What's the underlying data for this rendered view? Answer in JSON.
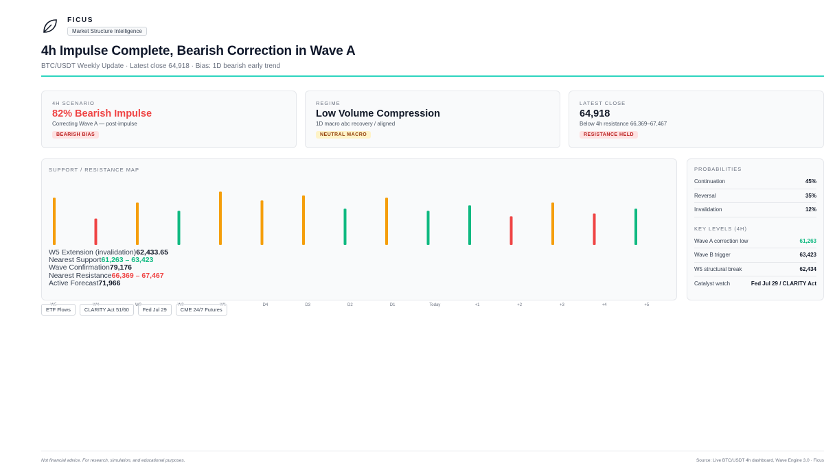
{
  "brand": {
    "name": "FICUS",
    "tagline": "Market Structure Intelligence",
    "logo_icon": "leaf-icon"
  },
  "header": {
    "title": "4h Impulse Complete, Bearish Correction in Wave A",
    "subtitle": "BTC/USDT Weekly Update · Latest close 64,918 · Bias: 1D bearish early trend"
  },
  "cards": [
    {
      "label": "4H SCENARIO",
      "value": "82% Bearish Impulse",
      "sub": "Correcting Wave A — post-impulse",
      "badge": "BEARISH BIAS",
      "value_color": "#ef4444"
    },
    {
      "label": "REGIME",
      "value": "Low Volume Compression",
      "sub": "1D macro abc recovery / aligned",
      "badge": "NEUTRAL MACRO",
      "value_color": "#111827"
    },
    {
      "label": "LATEST CLOSE",
      "value": "64,918",
      "sub": "Below 4h resistance 66,369–67,467",
      "badge": "RESISTANCE HELD",
      "value_color": "#111827"
    }
  ],
  "map": {
    "label": "SUPPORT / RESISTANCE MAP",
    "levels": [
      {
        "label": "W5 Extension (invalidation)",
        "value": "62,433.65"
      },
      {
        "label": "Nearest Support",
        "value": "61,263 – 63,423"
      },
      {
        "label": "Wave Confirmation",
        "value": "79,176"
      },
      {
        "label": "Nearest Resistance",
        "value": "66,369 – 67,467"
      },
      {
        "label": "Active Forecast",
        "value": "71,966"
      }
    ],
    "ticks": [
      "W5",
      "W4",
      "W3",
      "W2",
      "W1",
      "D4",
      "D3",
      "D2",
      "D1",
      "Today",
      "+1",
      "+2",
      "+3",
      "+4",
      "+5"
    ],
    "colors": {
      "amber": "#f59e0b",
      "red": "#ef4444",
      "green": "#10b981"
    }
  },
  "chart_data": {
    "type": "bar",
    "categories": [
      "W5",
      "W4",
      "W3",
      "W2",
      "W1",
      "D4",
      "D3",
      "D2",
      "D1",
      "Today",
      "+1",
      "+2",
      "+3",
      "+4",
      "+5"
    ],
    "series": [
      {
        "values": [
          0.86,
          0.48,
          0.77,
          0.62,
          0.97,
          0.81,
          0.9,
          0.66,
          0.86,
          0.62,
          0.72,
          0.52,
          0.77,
          0.57,
          0.66
        ]
      }
    ],
    "bar_colors": [
      "amber",
      "red",
      "amber",
      "green",
      "amber",
      "amber",
      "amber",
      "green",
      "amber",
      "green",
      "green",
      "red",
      "amber",
      "red",
      "green"
    ]
  },
  "chips": [
    "ETF Flows",
    "CLARITY Act 51/60",
    "Fed Jul 29",
    "CME 24/7 Futures"
  ],
  "probabilities": {
    "label": "PROBABILITIES",
    "items": [
      {
        "label": "Continuation",
        "value": "45%"
      },
      {
        "label": "Reversal",
        "value": "35%"
      },
      {
        "label": "Invalidation",
        "value": "12%"
      }
    ]
  },
  "key_levels": {
    "label": "KEY LEVELS (4H)",
    "items": [
      {
        "label": "Wave A correction low",
        "value": "61,263"
      },
      {
        "label": "Wave B trigger",
        "value": "63,423"
      },
      {
        "label": "W5 structural break",
        "value": "62,434"
      },
      {
        "label": "Catalyst watch",
        "value": "Fed Jul 29 / CLARITY Act"
      }
    ]
  },
  "footer": {
    "disclaimer": "Not financial advice. For research, simulation, and educational purposes.",
    "source": "Source: Live BTC/USDT 4h dashboard, Wave Engine 3.0 · Ficus"
  }
}
